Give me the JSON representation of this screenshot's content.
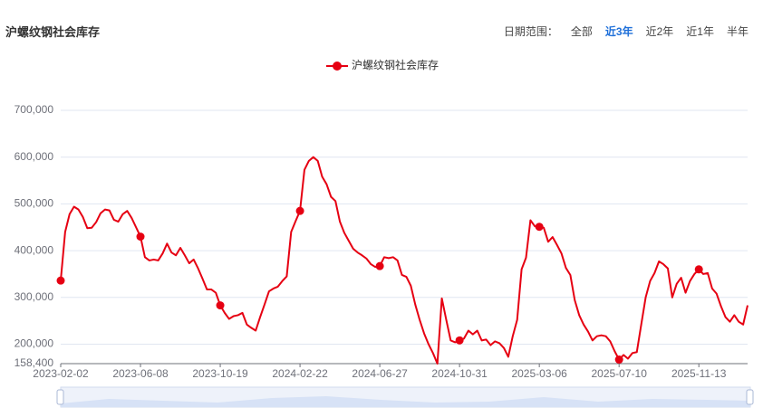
{
  "chart_data": {
    "type": "line",
    "title": "沪螺纹钢社会库存",
    "controls": {
      "label": "日期范围：",
      "options": [
        "全部",
        "近3年",
        "近2年",
        "近1年",
        "半年"
      ],
      "selected_index": 1
    },
    "x": [
      "2023-02-02",
      "2023-02-09",
      "2023-02-16",
      "2023-02-23",
      "2023-03-02",
      "2023-03-09",
      "2023-03-16",
      "2023-03-23",
      "2023-03-30",
      "2023-04-06",
      "2023-04-13",
      "2023-04-20",
      "2023-04-27",
      "2023-05-04",
      "2023-05-11",
      "2023-05-18",
      "2023-05-25",
      "2023-06-01",
      "2023-06-08",
      "2023-06-15",
      "2023-06-22",
      "2023-06-29",
      "2023-07-06",
      "2023-07-13",
      "2023-07-20",
      "2023-07-27",
      "2023-08-03",
      "2023-08-10",
      "2023-08-17",
      "2023-08-24",
      "2023-08-31",
      "2023-09-07",
      "2023-09-14",
      "2023-09-21",
      "2023-09-28",
      "2023-10-12",
      "2023-10-19",
      "2023-10-26",
      "2023-11-02",
      "2023-11-09",
      "2023-11-16",
      "2023-11-23",
      "2023-11-30",
      "2023-12-07",
      "2023-12-14",
      "2023-12-21",
      "2023-12-28",
      "2024-01-04",
      "2024-01-11",
      "2024-01-18",
      "2024-01-25",
      "2024-02-01",
      "2024-02-08",
      "2024-02-15",
      "2024-02-22",
      "2024-02-29",
      "2024-03-07",
      "2024-03-14",
      "2024-03-21",
      "2024-03-28",
      "2024-04-04",
      "2024-04-11",
      "2024-04-18",
      "2024-04-25",
      "2024-05-02",
      "2024-05-09",
      "2024-05-16",
      "2024-05-23",
      "2024-05-30",
      "2024-06-06",
      "2024-06-13",
      "2024-06-20",
      "2024-06-27",
      "2024-07-04",
      "2024-07-11",
      "2024-07-18",
      "2024-07-25",
      "2024-08-01",
      "2024-08-08",
      "2024-08-15",
      "2024-08-22",
      "2024-08-29",
      "2024-09-05",
      "2024-09-12",
      "2024-09-19",
      "2024-09-26",
      "2024-10-03",
      "2024-10-10",
      "2024-10-17",
      "2024-10-24",
      "2024-10-31",
      "2024-11-07",
      "2024-11-14",
      "2024-11-21",
      "2024-11-28",
      "2024-12-05",
      "2024-12-12",
      "2024-12-19",
      "2024-12-26",
      "2025-01-02",
      "2025-01-09",
      "2025-01-16",
      "2025-01-23",
      "2025-01-30",
      "2025-02-06",
      "2025-02-13",
      "2025-02-20",
      "2025-02-27",
      "2025-03-06",
      "2025-03-13",
      "2025-03-20",
      "2025-03-27",
      "2025-04-03",
      "2025-04-10",
      "2025-04-17",
      "2025-04-24",
      "2025-05-01",
      "2025-05-08",
      "2025-05-15",
      "2025-05-22",
      "2025-05-29",
      "2025-06-05",
      "2025-06-12",
      "2025-06-19",
      "2025-06-26",
      "2025-07-03",
      "2025-07-10",
      "2025-07-17",
      "2025-07-24",
      "2025-07-31",
      "2025-08-07",
      "2025-08-14",
      "2025-08-21",
      "2025-08-28",
      "2025-09-04",
      "2025-09-11",
      "2025-09-18",
      "2025-09-25",
      "2025-10-02",
      "2025-10-09",
      "2025-10-16",
      "2025-10-23",
      "2025-10-30",
      "2025-11-06",
      "2025-11-13",
      "2025-11-20",
      "2025-11-27",
      "2025-12-04",
      "2025-12-11",
      "2025-12-18",
      "2025-12-25",
      "2026-01-01",
      "2026-01-08",
      "2026-01-15",
      "2026-01-22",
      "2026-01-29"
    ],
    "xticks": [
      "2023-02-02",
      "2023-06-08",
      "2023-10-19",
      "2024-02-22",
      "2024-06-27",
      "2024-10-31",
      "2025-03-06",
      "2025-07-10",
      "2025-11-13"
    ],
    "series": [
      {
        "name": "沪螺纹钢社会库存",
        "color": "#e60012",
        "values": [
          336000,
          440000,
          478000,
          494000,
          488000,
          472000,
          448000,
          449000,
          461000,
          480000,
          488000,
          486000,
          466000,
          462000,
          478000,
          485000,
          470000,
          450000,
          430000,
          386000,
          379000,
          381000,
          379000,
          394000,
          415000,
          396000,
          390000,
          406000,
          390000,
          373000,
          381000,
          362000,
          340000,
          317000,
          317000,
          310000,
          283000,
          267000,
          254000,
          260000,
          262000,
          267000,
          242000,
          235000,
          229000,
          258000,
          285000,
          313000,
          319000,
          323000,
          335000,
          345000,
          440000,
          463000,
          485000,
          573000,
          592000,
          600000,
          592000,
          558000,
          542000,
          515000,
          506000,
          462000,
          438000,
          421000,
          404000,
          396000,
          390000,
          383000,
          371000,
          365000,
          367000,
          386000,
          384000,
          386000,
          379000,
          348000,
          344000,
          325000,
          285000,
          252000,
          223000,
          200000,
          181000,
          158400,
          298000,
          252000,
          208000,
          204000,
          208000,
          212000,
          229000,
          221000,
          229000,
          208000,
          210000,
          198000,
          206000,
          202000,
          192000,
          173000,
          217000,
          252000,
          360000,
          385000,
          465000,
          452000,
          451000,
          449000,
          419000,
          429000,
          412000,
          394000,
          363000,
          348000,
          294000,
          262000,
          242000,
          227000,
          208000,
          217000,
          219000,
          217000,
          206000,
          185000,
          167000,
          177000,
          169000,
          181000,
          183000,
          242000,
          300000,
          335000,
          352000,
          377000,
          371000,
          362000,
          300000,
          329000,
          342000,
          310000,
          335000,
          350000,
          360000,
          350000,
          352000,
          319000,
          308000,
          281000,
          258000,
          248000,
          262000,
          248000,
          242000,
          283000
        ]
      }
    ],
    "ylim": [
      158400,
      700000
    ],
    "yticks": [
      {
        "value": 158400,
        "label": "158,400"
      },
      {
        "value": 200000,
        "label": "200,000"
      },
      {
        "value": 300000,
        "label": "300,000"
      },
      {
        "value": 400000,
        "label": "400,000"
      },
      {
        "value": 500000,
        "label": "500,000"
      },
      {
        "value": 600000,
        "label": "600,000"
      },
      {
        "value": 700000,
        "label": "700,000"
      }
    ],
    "grid": true
  }
}
